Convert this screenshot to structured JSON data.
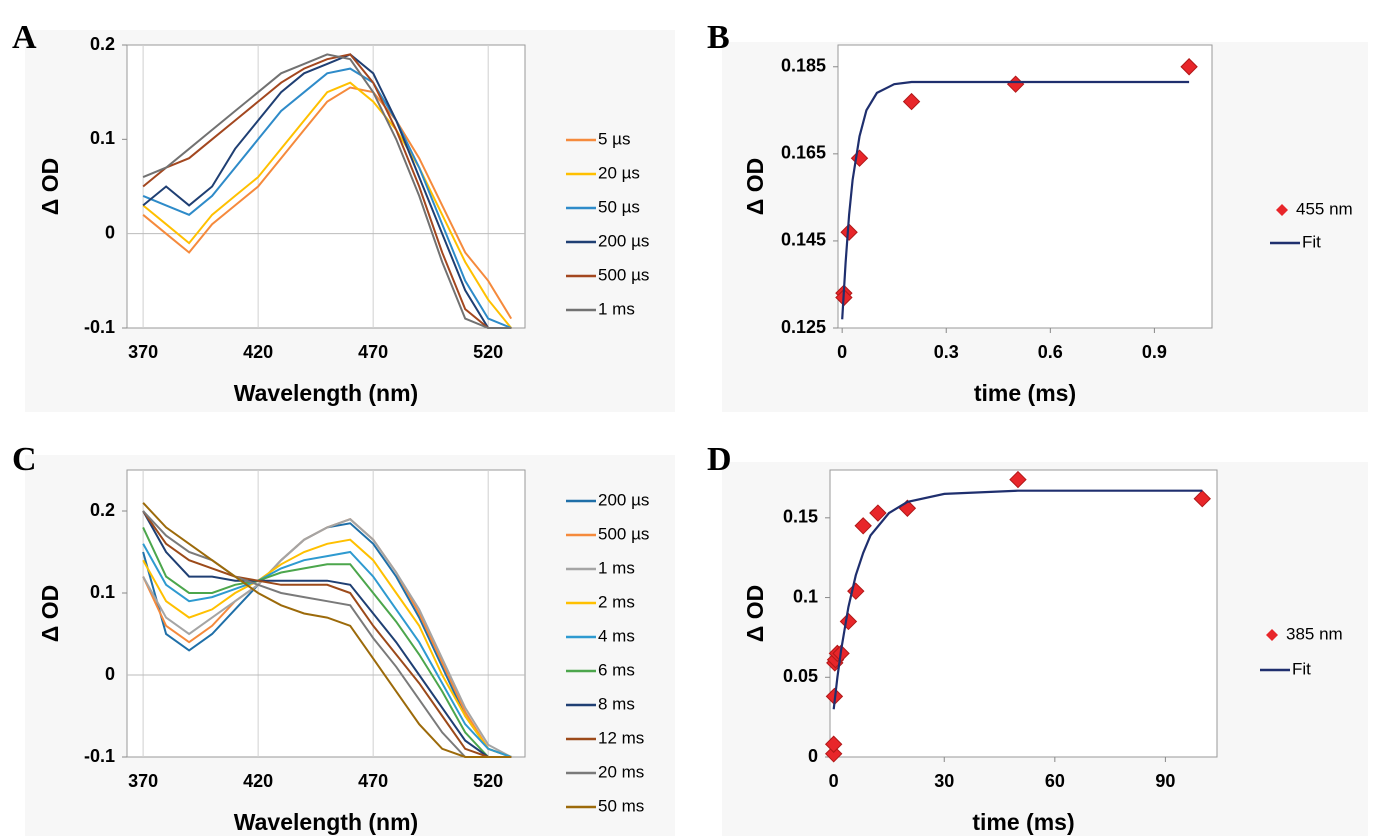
{
  "chart_data": [
    {
      "label": "A",
      "type": "line",
      "xlabel": "Wavelength (nm)",
      "ylabel": "Δ OD",
      "xlim": [
        363,
        536
      ],
      "xticks": [
        370,
        420,
        470,
        520
      ],
      "ylim": [
        -0.1,
        0.2
      ],
      "yticks": [
        -0.1,
        0,
        0.1,
        0.2
      ],
      "grid": "x",
      "zero_line": true,
      "x": [
        370,
        380,
        390,
        400,
        410,
        420,
        430,
        440,
        450,
        460,
        470,
        480,
        490,
        500,
        510,
        520,
        530
      ],
      "series": [
        {
          "name": "5 µs",
          "color": "#f58a3c",
          "values": [
            0.02,
            0.0,
            -0.02,
            0.01,
            0.03,
            0.05,
            0.08,
            0.11,
            0.14,
            0.155,
            0.15,
            0.12,
            0.08,
            0.03,
            -0.02,
            -0.05,
            -0.09
          ]
        },
        {
          "name": "20 µs",
          "color": "#ffc000",
          "values": [
            0.03,
            0.01,
            -0.01,
            0.02,
            0.04,
            0.06,
            0.09,
            0.12,
            0.15,
            0.16,
            0.14,
            0.11,
            0.07,
            0.02,
            -0.03,
            -0.07,
            -0.1
          ]
        },
        {
          "name": "50 µs",
          "color": "#2e8bc9",
          "values": [
            0.04,
            0.03,
            0.02,
            0.04,
            0.07,
            0.1,
            0.13,
            0.15,
            0.17,
            0.175,
            0.16,
            0.12,
            0.07,
            0.01,
            -0.05,
            -0.09,
            -0.1
          ]
        },
        {
          "name": "200 µs",
          "color": "#1f3f73",
          "values": [
            0.03,
            0.05,
            0.03,
            0.05,
            0.09,
            0.12,
            0.15,
            0.17,
            0.18,
            0.19,
            0.17,
            0.12,
            0.06,
            0.0,
            -0.06,
            -0.1,
            -0.1
          ]
        },
        {
          "name": "500 µs",
          "color": "#a3471f",
          "values": [
            0.05,
            0.07,
            0.08,
            0.1,
            0.12,
            0.14,
            0.16,
            0.175,
            0.185,
            0.19,
            0.16,
            0.11,
            0.05,
            -0.02,
            -0.08,
            -0.1,
            -0.1
          ]
        },
        {
          "name": "1 ms",
          "color": "#727272",
          "values": [
            0.06,
            0.07,
            0.09,
            0.11,
            0.13,
            0.15,
            0.17,
            0.18,
            0.19,
            0.185,
            0.15,
            0.1,
            0.04,
            -0.03,
            -0.09,
            -0.1,
            -0.1
          ]
        }
      ]
    },
    {
      "label": "B",
      "type": "scatter",
      "xlabel": "time (ms)",
      "ylabel": "Δ OD",
      "xlim": [
        -0.012,
        1.066
      ],
      "xticks": [
        0,
        0.3,
        0.6,
        0.9
      ],
      "ylim": [
        0.125,
        0.19
      ],
      "yticks": [
        0.125,
        0.145,
        0.165,
        0.185
      ],
      "series": [
        {
          "name": "455 nm",
          "type": "scatter",
          "color": "#e8262a",
          "x": [
            0.005,
            0.005,
            0.02,
            0.05,
            0.2,
            0.5,
            1.0
          ],
          "values": [
            0.133,
            0.132,
            0.147,
            0.164,
            0.177,
            0.181,
            0.185
          ]
        },
        {
          "name": "Fit",
          "type": "line",
          "color": "#1f2f6e",
          "x": [
            0,
            0.01,
            0.02,
            0.03,
            0.05,
            0.07,
            0.1,
            0.15,
            0.2,
            0.3,
            0.5,
            1.0
          ],
          "values": [
            0.127,
            0.14,
            0.151,
            0.159,
            0.169,
            0.175,
            0.179,
            0.181,
            0.1815,
            0.1815,
            0.1815,
            0.1815
          ]
        }
      ]
    },
    {
      "label": "C",
      "type": "line",
      "xlabel": "Wavelength (nm)",
      "ylabel": "Δ OD",
      "xlim": [
        363,
        536
      ],
      "xticks": [
        370,
        420,
        470,
        520
      ],
      "ylim": [
        -0.1,
        0.25
      ],
      "yticks": [
        -0.1,
        0,
        0.1,
        0.2
      ],
      "grid": "x",
      "zero_line": true,
      "x": [
        370,
        380,
        390,
        400,
        410,
        420,
        430,
        440,
        450,
        460,
        470,
        480,
        490,
        500,
        510,
        520,
        530
      ],
      "series": [
        {
          "name": "200 µs",
          "color": "#1f6fa8",
          "values": [
            0.15,
            0.05,
            0.03,
            0.05,
            0.08,
            0.11,
            0.14,
            0.165,
            0.18,
            0.185,
            0.16,
            0.12,
            0.07,
            0.01,
            -0.05,
            -0.09,
            -0.1
          ]
        },
        {
          "name": "500 µs",
          "color": "#f58a3c",
          "values": [
            0.12,
            0.06,
            0.04,
            0.06,
            0.09,
            0.11,
            0.14,
            0.165,
            0.18,
            0.19,
            0.165,
            0.125,
            0.075,
            0.015,
            -0.045,
            -0.09,
            -0.1
          ]
        },
        {
          "name": "1 ms",
          "color": "#a5a5a5",
          "values": [
            0.12,
            0.07,
            0.05,
            0.07,
            0.09,
            0.11,
            0.14,
            0.165,
            0.18,
            0.19,
            0.165,
            0.125,
            0.08,
            0.02,
            -0.04,
            -0.085,
            -0.1
          ]
        },
        {
          "name": "2 ms",
          "color": "#ffc000",
          "values": [
            0.14,
            0.09,
            0.07,
            0.08,
            0.1,
            0.115,
            0.135,
            0.15,
            0.16,
            0.165,
            0.14,
            0.1,
            0.06,
            0.0,
            -0.05,
            -0.09,
            -0.1
          ]
        },
        {
          "name": "4 ms",
          "color": "#2e9ad0",
          "values": [
            0.16,
            0.11,
            0.09,
            0.095,
            0.105,
            0.115,
            0.13,
            0.14,
            0.145,
            0.15,
            0.12,
            0.08,
            0.04,
            -0.01,
            -0.06,
            -0.09,
            -0.1
          ]
        },
        {
          "name": "6 ms",
          "color": "#4ca64c",
          "values": [
            0.18,
            0.12,
            0.1,
            0.1,
            0.11,
            0.115,
            0.125,
            0.13,
            0.135,
            0.135,
            0.1,
            0.065,
            0.025,
            -0.02,
            -0.07,
            -0.1,
            -0.1
          ]
        },
        {
          "name": "8 ms",
          "color": "#1f3f73",
          "values": [
            0.2,
            0.15,
            0.12,
            0.12,
            0.115,
            0.115,
            0.115,
            0.115,
            0.115,
            0.11,
            0.075,
            0.04,
            0.0,
            -0.04,
            -0.08,
            -0.1,
            -0.1
          ]
        },
        {
          "name": "12 ms",
          "color": "#9c4a1a",
          "values": [
            0.2,
            0.16,
            0.14,
            0.13,
            0.12,
            0.115,
            0.11,
            0.11,
            0.11,
            0.1,
            0.06,
            0.025,
            -0.01,
            -0.05,
            -0.09,
            -0.1,
            -0.1
          ]
        },
        {
          "name": "20 ms",
          "color": "#7a7a7a",
          "values": [
            0.2,
            0.17,
            0.15,
            0.14,
            0.12,
            0.11,
            0.1,
            0.095,
            0.09,
            0.085,
            0.045,
            0.01,
            -0.03,
            -0.07,
            -0.1,
            -0.1,
            -0.1
          ]
        },
        {
          "name": "50 ms",
          "color": "#9c6a0a",
          "values": [
            0.21,
            0.18,
            0.16,
            0.14,
            0.12,
            0.1,
            0.085,
            0.075,
            0.07,
            0.06,
            0.02,
            -0.02,
            -0.06,
            -0.09,
            -0.1,
            -0.1,
            -0.1
          ]
        }
      ]
    },
    {
      "label": "D",
      "type": "scatter",
      "xlabel": "time (ms)",
      "ylabel": "Δ OD",
      "xlim": [
        -1,
        104
      ],
      "xticks": [
        0,
        30,
        60,
        90
      ],
      "ylim": [
        0,
        0.18
      ],
      "yticks": [
        0,
        0.05,
        0.1,
        0.15
      ],
      "series": [
        {
          "name": "385 nm",
          "type": "scatter",
          "color": "#e8262a",
          "x": [
            0,
            0,
            0.2,
            0.3,
            0.5,
            1,
            2,
            4,
            6,
            8,
            12,
            20,
            50,
            100
          ],
          "values": [
            0.002,
            0.008,
            0.038,
            0.059,
            0.061,
            0.065,
            0.065,
            0.085,
            0.104,
            0.145,
            0.153,
            0.156,
            0.174,
            0.162
          ]
        },
        {
          "name": "Fit",
          "type": "line",
          "color": "#1f2f6e",
          "x": [
            0,
            1,
            2,
            4,
            6,
            8,
            10,
            15,
            20,
            30,
            50,
            100
          ],
          "values": [
            0.03,
            0.05,
            0.067,
            0.094,
            0.114,
            0.128,
            0.139,
            0.153,
            0.16,
            0.165,
            0.167,
            0.167
          ]
        }
      ]
    }
  ]
}
